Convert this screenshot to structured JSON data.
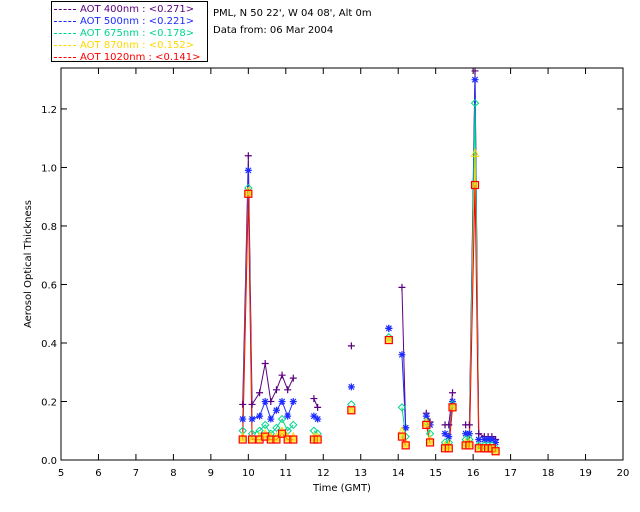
{
  "header": {
    "location": "PML, N 50 22', W 04 08', Alt 0m",
    "date_line": "Data from: 06 Mar 2004"
  },
  "legend": [
    {
      "text": "AOT  400nm : <0.271>",
      "color": "#5a007f"
    },
    {
      "text": "AOT  500nm : <0.221>",
      "color": "#1c2bff"
    },
    {
      "text": "AOT  675nm : <0.178>",
      "color": "#00d68a"
    },
    {
      "text": "AOT  870nm : <0.152>",
      "color": "#ffd700"
    },
    {
      "text": "AOT 1020nm : <0.141>",
      "color": "#ff0000"
    }
  ],
  "chart_data": {
    "type": "line",
    "xlabel": "Time (GMT)",
    "ylabel": "Aerosol Optical Thickness",
    "xlim": [
      5,
      20
    ],
    "ylim": [
      0,
      1.34
    ],
    "xticks": [
      5,
      6,
      7,
      8,
      9,
      10,
      11,
      12,
      13,
      14,
      15,
      16,
      17,
      18,
      19,
      20
    ],
    "yticks": [
      0.0,
      0.2,
      0.4,
      0.6,
      0.8,
      1.0,
      1.2
    ],
    "ytick_labels": [
      "0.0",
      "0.2",
      "0.4",
      "0.6",
      "0.8",
      "1.0",
      "1.2"
    ],
    "series": [
      {
        "name": "AOT  400nm : <0.271>",
        "color": "#5a007f",
        "marker": "plus",
        "x": [
          9.85,
          10.0,
          10.1,
          10.3,
          10.45,
          10.6,
          10.75,
          10.9,
          11.05,
          11.2,
          null,
          11.75,
          11.85,
          null,
          12.75,
          null,
          13.75,
          null,
          14.1,
          14.2,
          null,
          14.75,
          14.85,
          null,
          15.25,
          15.35,
          15.45,
          null,
          15.8,
          15.9,
          16.05,
          16.15,
          16.3,
          16.4,
          16.5,
          16.6
        ],
        "y": [
          0.19,
          1.04,
          0.19,
          0.23,
          0.33,
          0.2,
          0.24,
          0.29,
          0.24,
          0.28,
          null,
          0.21,
          0.18,
          null,
          0.39,
          null,
          0.45,
          null,
          0.59,
          0.11,
          null,
          0.16,
          0.13,
          null,
          0.12,
          0.12,
          0.23,
          null,
          0.12,
          0.12,
          1.33,
          0.09,
          0.08,
          0.08,
          0.08,
          0.07
        ]
      },
      {
        "name": "AOT  500nm : <0.221>",
        "color": "#1c2bff",
        "marker": "star",
        "x": [
          9.85,
          10.0,
          10.1,
          10.3,
          10.45,
          10.6,
          10.75,
          10.9,
          11.05,
          11.2,
          null,
          11.75,
          11.85,
          null,
          12.75,
          null,
          13.75,
          null,
          14.1,
          14.2,
          null,
          14.75,
          14.85,
          null,
          15.25,
          15.35,
          15.45,
          null,
          15.8,
          15.9,
          16.05,
          16.15,
          16.3,
          16.4,
          16.5,
          16.6
        ],
        "y": [
          0.14,
          0.99,
          0.14,
          0.15,
          0.2,
          0.14,
          0.17,
          0.2,
          0.15,
          0.2,
          null,
          0.15,
          0.14,
          null,
          0.25,
          null,
          0.45,
          null,
          0.36,
          0.11,
          null,
          0.15,
          0.12,
          null,
          0.09,
          0.08,
          0.2,
          null,
          0.09,
          0.09,
          1.3,
          0.07,
          0.07,
          0.07,
          0.07,
          0.06
        ]
      },
      {
        "name": "AOT  675nm : <0.178>",
        "color": "#00d68a",
        "marker": "diamond",
        "x": [
          9.85,
          10.0,
          10.1,
          10.3,
          10.45,
          10.6,
          10.75,
          10.9,
          11.05,
          11.2,
          null,
          11.75,
          11.85,
          null,
          12.75,
          null,
          13.75,
          null,
          14.1,
          14.2,
          null,
          14.75,
          14.85,
          null,
          15.25,
          15.35,
          15.45,
          null,
          15.8,
          15.9,
          16.05,
          16.15,
          16.3,
          16.4,
          16.5,
          16.6
        ],
        "y": [
          0.1,
          0.93,
          0.09,
          0.1,
          0.12,
          0.09,
          0.11,
          0.14,
          0.1,
          0.12,
          null,
          0.1,
          0.09,
          null,
          0.19,
          null,
          0.42,
          null,
          0.18,
          0.08,
          null,
          0.13,
          0.09,
          null,
          0.06,
          0.06,
          0.19,
          null,
          0.07,
          0.07,
          1.22,
          0.05,
          0.05,
          0.05,
          0.05,
          0.04
        ]
      },
      {
        "name": "AOT  870nm : <0.152>",
        "color": "#ffd700",
        "marker": "triangle",
        "x": [
          9.85,
          10.0,
          10.1,
          10.3,
          10.45,
          10.6,
          10.75,
          10.9,
          11.05,
          11.2,
          null,
          11.75,
          11.85,
          null,
          12.75,
          null,
          13.75,
          null,
          14.1,
          14.2,
          null,
          14.75,
          14.85,
          null,
          15.25,
          15.35,
          15.45,
          null,
          15.8,
          15.9,
          16.05,
          16.15,
          16.3,
          16.4,
          16.5,
          16.6
        ],
        "y": [
          0.08,
          0.92,
          0.07,
          0.08,
          0.09,
          0.08,
          0.08,
          0.1,
          0.08,
          0.08,
          null,
          0.08,
          0.08,
          null,
          0.17,
          null,
          0.41,
          null,
          0.1,
          0.06,
          null,
          0.13,
          0.07,
          null,
          0.05,
          0.05,
          0.18,
          null,
          0.06,
          0.06,
          1.05,
          0.04,
          0.04,
          0.04,
          0.04,
          0.03
        ]
      },
      {
        "name": "AOT 1020nm : <0.141>",
        "color": "#ff0000",
        "marker": "square",
        "x": [
          9.85,
          10.0,
          10.1,
          10.3,
          10.45,
          10.6,
          10.75,
          10.9,
          11.05,
          11.2,
          null,
          11.75,
          11.85,
          null,
          12.75,
          null,
          13.75,
          null,
          14.1,
          14.2,
          null,
          14.75,
          14.85,
          null,
          15.25,
          15.35,
          15.45,
          null,
          15.8,
          15.9,
          16.05,
          16.15,
          16.3,
          16.4,
          16.5,
          16.6
        ],
        "y": [
          0.07,
          0.91,
          0.07,
          0.07,
          0.08,
          0.07,
          0.07,
          0.09,
          0.07,
          0.07,
          null,
          0.07,
          0.07,
          null,
          0.17,
          null,
          0.41,
          null,
          0.08,
          0.05,
          null,
          0.12,
          0.06,
          null,
          0.04,
          0.04,
          0.18,
          null,
          0.05,
          0.05,
          0.94,
          0.04,
          0.04,
          0.04,
          0.04,
          0.03
        ]
      }
    ]
  }
}
